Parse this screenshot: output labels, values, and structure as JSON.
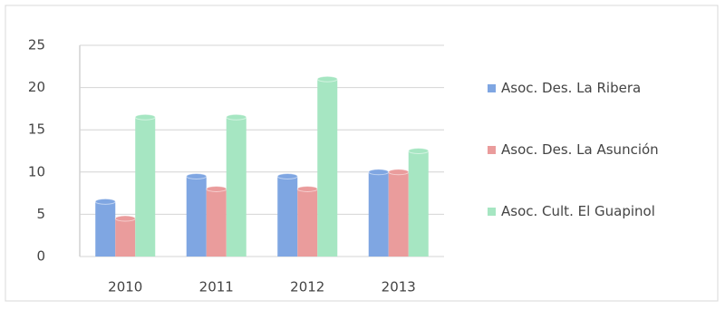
{
  "chart_data": {
    "type": "bar",
    "categories": [
      "2010",
      "2011",
      "2012",
      "2013"
    ],
    "series": [
      {
        "name": "Asoc. Des. La Ribera",
        "color": "#7fa6e2",
        "values": [
          6.5,
          9.5,
          9.5,
          10
        ]
      },
      {
        "name": "Asoc. Des. La Asunción",
        "color": "#ea9c9c",
        "values": [
          4.5,
          8,
          8,
          10
        ]
      },
      {
        "name": "Asoc. Cult. El Guapinol",
        "color": "#a6e6c2",
        "values": [
          16.5,
          16.5,
          21,
          12.5
        ]
      }
    ],
    "ylim": [
      0,
      25
    ],
    "yticks": [
      0,
      5,
      10,
      15,
      20,
      25
    ],
    "grid": true,
    "legend": "right"
  }
}
